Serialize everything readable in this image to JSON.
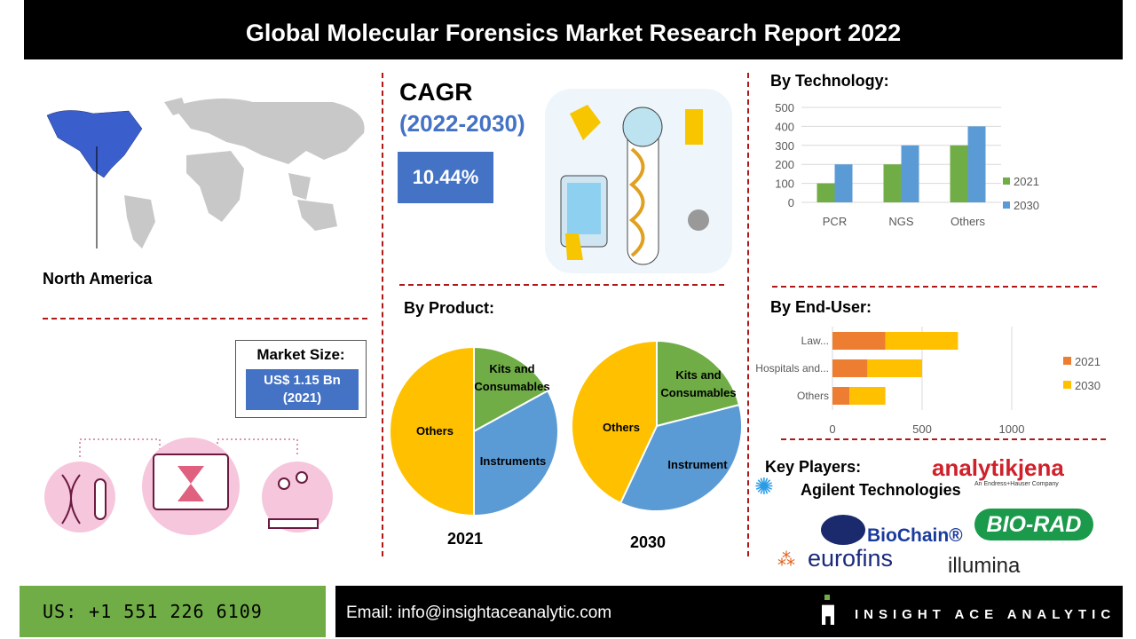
{
  "header": {
    "title": "Global Molecular Forensics Market Research Report 2022"
  },
  "region": {
    "label": "North America"
  },
  "cagr": {
    "title": "CAGR",
    "years": "(2022-2030)",
    "value": "10.44%"
  },
  "market_size": {
    "label": "Market Size:",
    "value_line1": "US$ 1.15 Bn",
    "value_line2": "(2021)"
  },
  "sections": {
    "technology": "By Technology:",
    "product": "By Product:",
    "end_user": "By  End-User:",
    "key_players": "Key Players:"
  },
  "key_players": [
    "Agilent Technologies",
    "analytikjena",
    "An Endress+Hauser Company",
    "BioChain®",
    "BIO-RAD",
    "eurofins",
    "illumina"
  ],
  "footer": {
    "phone": "US: +1 551 226 6109",
    "email": "Email: info@insightaceanalytic.com",
    "brand": "INSIGHT ACE ANALYTIC"
  },
  "colors": {
    "header": "#000000",
    "accent_blue": "#4472c4",
    "green": "#70ad47",
    "blue": "#5b9bd5",
    "orange": "#ed7d31",
    "yellow": "#ffc000",
    "divider": "#b01818"
  },
  "chart_data": [
    {
      "type": "bar",
      "title": "By Technology:",
      "categories": [
        "PCR",
        "NGS",
        "Others"
      ],
      "series": [
        {
          "name": "2021",
          "values": [
            100,
            200,
            300
          ],
          "color": "#70ad47"
        },
        {
          "name": "2030",
          "values": [
            200,
            300,
            400
          ],
          "color": "#5b9bd5"
        }
      ],
      "ylim": [
        0,
        500
      ],
      "yticks": [
        0,
        100,
        200,
        300,
        400,
        500
      ],
      "grid": true,
      "legend": "right"
    },
    {
      "type": "bar",
      "orientation": "horizontal",
      "stacked": true,
      "title": "By  End-User:",
      "categories": [
        "Law...",
        "Hospitals and...",
        "Others"
      ],
      "series": [
        {
          "name": "2021",
          "values": [
            295,
            195,
            95
          ],
          "color": "#ed7d31"
        },
        {
          "name": "2030",
          "values": [
            405,
            305,
            200
          ],
          "color": "#ffc000"
        }
      ],
      "xlim": [
        0,
        1000
      ],
      "xticks": [
        0,
        500,
        1000
      ],
      "grid": true,
      "legend": "right"
    },
    {
      "type": "pie",
      "title": "2021",
      "labels": [
        "Kits and Consumables",
        "Instruments",
        "Others"
      ],
      "values": [
        17,
        33,
        50
      ],
      "colors": [
        "#70ad47",
        "#5b9bd5",
        "#ffc000"
      ]
    },
    {
      "type": "pie",
      "title": "2030",
      "labels": [
        "Kits and Consumables",
        "Instrument",
        "Others"
      ],
      "values": [
        21,
        36,
        43
      ],
      "colors": [
        "#70ad47",
        "#5b9bd5",
        "#ffc000"
      ]
    }
  ]
}
